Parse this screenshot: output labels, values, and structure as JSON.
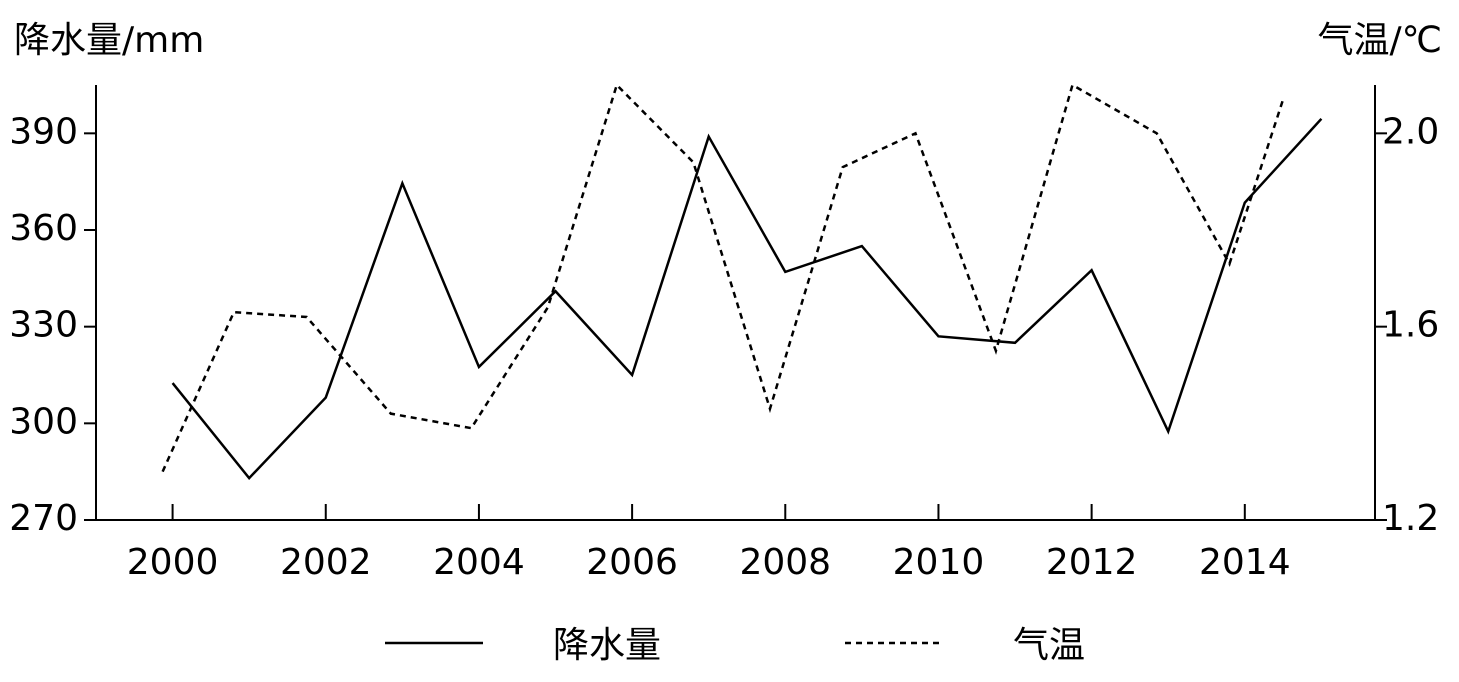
{
  "chart_data": {
    "type": "line",
    "y_label": "降水量/mm",
    "y2_label": "气温/℃",
    "xlim": [
      1999,
      2015.7
    ],
    "xticks": [
      2000,
      2002,
      2004,
      2006,
      2008,
      2010,
      2012,
      2014
    ],
    "ylim": [
      270,
      405
    ],
    "yticks": [
      270,
      300,
      330,
      360,
      390
    ],
    "y2lim": [
      1.2,
      2.1
    ],
    "y2ticks": [
      {
        "value": 1.2,
        "label": "1.2"
      },
      {
        "value": 1.6,
        "label": "1.6"
      },
      {
        "value": 2.0,
        "label": "2.0"
      }
    ],
    "series": [
      {
        "name": "降水量",
        "color": "#000000",
        "dash": "solid",
        "x": [
          2000,
          2001,
          2002,
          2003,
          2004,
          2005,
          2006,
          2007,
          2008,
          2009,
          2010,
          2011,
          2012,
          2013,
          2014,
          2015
        ],
        "values": [
          312.5,
          283,
          308,
          374.5,
          317.5,
          341,
          315,
          389,
          347,
          355,
          327,
          325,
          347.5,
          297.5,
          368.5,
          394.5
        ]
      },
      {
        "name": "气温",
        "color": "#000000",
        "dash": "dotted",
        "axis": "y2",
        "x": [
          1999.87,
          2000.8,
          2001.75,
          2002.85,
          2003.9,
          2004.9,
          2005.8,
          2006.8,
          2007.8,
          2008.75,
          2009.7,
          2010.75,
          2011.75,
          2012.85,
          2013.8,
          2014.5
        ],
        "values": [
          1.3,
          1.63,
          1.62,
          1.42,
          1.39,
          1.64,
          2.1,
          1.94,
          1.43,
          1.93,
          2.0,
          1.55,
          2.1,
          2.0,
          1.73,
          2.07
        ]
      }
    ]
  }
}
